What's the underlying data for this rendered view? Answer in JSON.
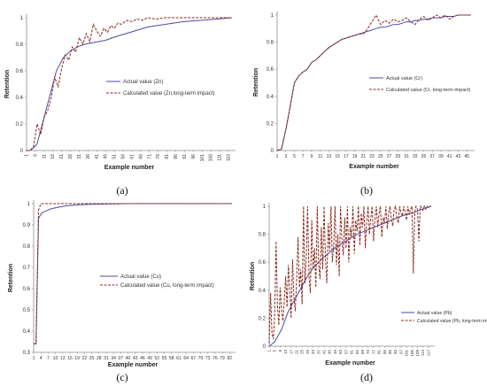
{
  "colors": {
    "actual": "#4b4ba6",
    "calculated": "#8b2a1e",
    "axis": "#8c8c8c"
  },
  "chart_data": [
    {
      "type": "line",
      "panel": "(a)",
      "xlabel": "Example number",
      "ylabel": "Retention",
      "ylim": [
        0,
        1
      ],
      "yticks": [
        "0",
        "0.2",
        "0.4",
        "0.6",
        "0.8",
        "1"
      ],
      "xticks": [
        "1",
        "6",
        "11",
        "16",
        "21",
        "26",
        "31",
        "36",
        "41",
        "46",
        "51",
        "56",
        "61",
        "66",
        "71",
        "76",
        "81",
        "86",
        "91",
        "96",
        "101",
        "106",
        "111",
        "116"
      ],
      "legend": "center-right",
      "grid": false,
      "series": [
        {
          "name": "Actual value (Zn)",
          "x": [
            1,
            3,
            5,
            7,
            10,
            14,
            18,
            22,
            26,
            30,
            34,
            38,
            42,
            46,
            50,
            55,
            60,
            70,
            80,
            90,
            100,
            110,
            118
          ],
          "values": [
            0,
            0,
            0.02,
            0.05,
            0.2,
            0.4,
            0.6,
            0.7,
            0.75,
            0.78,
            0.8,
            0.81,
            0.82,
            0.83,
            0.85,
            0.87,
            0.89,
            0.93,
            0.95,
            0.97,
            0.98,
            0.99,
            1
          ]
        },
        {
          "name": "Calculated value (Zn,long-term impact)",
          "x": [
            1,
            3,
            5,
            7,
            9,
            11,
            13,
            15,
            17,
            19,
            21,
            23,
            25,
            27,
            29,
            31,
            33,
            35,
            37,
            39,
            41,
            43,
            45,
            47,
            49,
            51,
            53,
            55,
            58,
            61,
            64,
            67,
            70,
            75,
            80,
            90,
            100,
            110,
            118
          ],
          "values": [
            0,
            0,
            0.03,
            0.2,
            0.12,
            0.25,
            0.3,
            0.4,
            0.55,
            0.48,
            0.62,
            0.72,
            0.68,
            0.78,
            0.74,
            0.85,
            0.8,
            0.88,
            0.82,
            0.95,
            0.9,
            0.86,
            0.92,
            0.89,
            0.94,
            0.92,
            0.96,
            0.95,
            0.98,
            0.97,
            0.99,
            0.98,
            1,
            0.99,
            1,
            1,
            1,
            1,
            1
          ]
        }
      ]
    },
    {
      "type": "line",
      "panel": "(b)",
      "xlabel": "Example number",
      "ylabel": "Retention",
      "ylim": [
        0,
        1
      ],
      "yticks": [
        "0",
        "0.2",
        "0.4",
        "0.6",
        "0.8",
        "1"
      ],
      "xticks": [
        "1",
        "3",
        "5",
        "7",
        "9",
        "11",
        "13",
        "15",
        "17",
        "19",
        "21",
        "23",
        "25",
        "27",
        "29",
        "31",
        "33",
        "35",
        "37",
        "39",
        "41",
        "43",
        "45"
      ],
      "legend": "center-right",
      "grid": false,
      "series": [
        {
          "name": "Actual value (Cr)",
          "x": [
            1,
            2,
            3,
            4,
            5,
            6,
            7,
            8,
            9,
            10,
            11,
            12,
            13,
            14,
            15,
            16,
            17,
            18,
            19,
            20,
            21,
            22,
            23,
            24,
            25,
            26,
            27,
            28,
            29,
            30,
            31,
            32,
            33,
            34,
            35,
            36,
            37,
            38,
            39,
            40,
            41,
            42,
            43,
            44,
            45,
            46
          ],
          "values": [
            0,
            0.01,
            0.15,
            0.32,
            0.5,
            0.55,
            0.58,
            0.6,
            0.65,
            0.67,
            0.7,
            0.73,
            0.76,
            0.78,
            0.8,
            0.82,
            0.83,
            0.84,
            0.85,
            0.86,
            0.87,
            0.88,
            0.89,
            0.9,
            0.91,
            0.91,
            0.92,
            0.93,
            0.93,
            0.94,
            0.95,
            0.95,
            0.96,
            0.96,
            0.97,
            0.97,
            0.98,
            0.98,
            0.98,
            0.99,
            0.99,
            0.99,
            1,
            1,
            1,
            1
          ]
        },
        {
          "name": "Calculated value (Cr, long-term impact)",
          "x": [
            1,
            2,
            3,
            4,
            5,
            6,
            7,
            8,
            9,
            10,
            11,
            12,
            13,
            14,
            15,
            16,
            17,
            18,
            19,
            20,
            21,
            22,
            23,
            24,
            25,
            26,
            27,
            28,
            29,
            30,
            31,
            32,
            33,
            34,
            35,
            36,
            37,
            38,
            39,
            40,
            41,
            42,
            43,
            44,
            45,
            46
          ],
          "values": [
            0,
            0.01,
            0.15,
            0.32,
            0.5,
            0.55,
            0.58,
            0.6,
            0.65,
            0.67,
            0.7,
            0.73,
            0.76,
            0.78,
            0.8,
            0.82,
            0.83,
            0.84,
            0.85,
            0.86,
            0.86,
            0.9,
            0.95,
            1,
            0.93,
            0.96,
            0.94,
            0.97,
            0.95,
            0.96,
            0.98,
            0.95,
            0.93,
            0.97,
            0.99,
            0.96,
            0.98,
            1,
            0.98,
            1,
            0.97,
            0.99,
            1,
            1,
            1,
            1
          ]
        }
      ]
    },
    {
      "type": "line",
      "panel": "(c)",
      "xlabel": "Example number",
      "ylabel": "Retention",
      "ylim": [
        0.3,
        1
      ],
      "yticks": [
        "0.3",
        "0.4",
        "0.5",
        "0.6",
        "0.7",
        "0.8",
        "0.9",
        "1"
      ],
      "xticks": [
        "1",
        "4",
        "7",
        "10",
        "13",
        "16",
        "19",
        "22",
        "25",
        "28",
        "31",
        "34",
        "37",
        "40",
        "43",
        "46",
        "49",
        "52",
        "55",
        "58",
        "61",
        "64",
        "67",
        "70",
        "73",
        "76",
        "79",
        "82"
      ],
      "legend": "center-right",
      "grid": false,
      "series": [
        {
          "name": "Actual value (Cu)",
          "x": [
            1,
            2,
            3,
            4,
            5,
            6,
            7,
            8,
            10,
            12,
            15,
            20,
            25,
            30,
            40,
            50,
            60,
            70,
            83
          ],
          "values": [
            0.34,
            0.34,
            0.93,
            0.95,
            0.96,
            0.965,
            0.97,
            0.975,
            0.98,
            0.985,
            0.99,
            0.995,
            0.997,
            0.998,
            1,
            1,
            1,
            1,
            1
          ]
        },
        {
          "name": "Calculated value (Cu, long-term impact)",
          "x": [
            1,
            2,
            3,
            4,
            5,
            6,
            8,
            10,
            20,
            40,
            60,
            83
          ],
          "values": [
            0.34,
            0.34,
            0.97,
            1,
            1,
            1,
            1,
            1,
            1,
            1,
            1,
            1
          ]
        }
      ]
    },
    {
      "type": "line",
      "panel": "(d)",
      "xlabel": "Example number",
      "ylabel": "Retention",
      "ylim": [
        0,
        1
      ],
      "yticks": [
        "0",
        "0.2",
        "0.4",
        "0.6",
        "0.8",
        "1"
      ],
      "xticks": [
        "1",
        "5",
        "9",
        "13",
        "17",
        "21",
        "25",
        "29",
        "33",
        "37",
        "41",
        "45",
        "49",
        "53",
        "57",
        "61",
        "65",
        "69",
        "73",
        "77",
        "81",
        "85",
        "89",
        "93",
        "97",
        "101",
        "105",
        "109",
        "113",
        "117"
      ],
      "legend": "bottom-left",
      "grid": false,
      "series": [
        {
          "name": "Actual value (Pb)",
          "x": [
            1,
            5,
            10,
            15,
            20,
            25,
            30,
            35,
            40,
            45,
            50,
            55,
            60,
            65,
            70,
            75,
            80,
            85,
            90,
            95,
            100,
            105,
            110,
            115,
            119
          ],
          "values": [
            0,
            0.03,
            0.12,
            0.25,
            0.34,
            0.43,
            0.52,
            0.58,
            0.63,
            0.67,
            0.71,
            0.74,
            0.77,
            0.8,
            0.82,
            0.84,
            0.86,
            0.88,
            0.9,
            0.92,
            0.94,
            0.95,
            0.97,
            0.99,
            1
          ]
        },
        {
          "name": "Calculated value (Pb, long-term impact)",
          "x": [
            1,
            2,
            3,
            4,
            5,
            6,
            7,
            8,
            9,
            10,
            11,
            12,
            13,
            14,
            15,
            16,
            17,
            18,
            19,
            20,
            21,
            22,
            23,
            24,
            25,
            26,
            27,
            28,
            29,
            30,
            31,
            32,
            33,
            34,
            35,
            36,
            37,
            38,
            39,
            40,
            41,
            42,
            43,
            44,
            45,
            46,
            47,
            48,
            49,
            50,
            51,
            52,
            53,
            54,
            55,
            56,
            57,
            58,
            59,
            60,
            61,
            62,
            63,
            64,
            65,
            66,
            67,
            68,
            69,
            70,
            71,
            72,
            73,
            74,
            75,
            76,
            77,
            78,
            79,
            80,
            81,
            82,
            83,
            84,
            85,
            86,
            87,
            88,
            89,
            90,
            91,
            92,
            93,
            94,
            95,
            96,
            97,
            98,
            99,
            100,
            101,
            102,
            103,
            104,
            105,
            106,
            107,
            108,
            109,
            110,
            111,
            112,
            113,
            114,
            115,
            116,
            117,
            118,
            119
          ],
          "values": [
            0.02,
            0.38,
            0.1,
            0.05,
            0.22,
            0.75,
            0.3,
            0.15,
            0.42,
            0.25,
            0.18,
            0.33,
            0.5,
            0.28,
            0.58,
            0.4,
            0.2,
            0.62,
            0.35,
            0.25,
            0.48,
            0.78,
            0.42,
            0.55,
            0.3,
            1,
            0.45,
            0.62,
            1,
            0.5,
            0.38,
            0.9,
            0.55,
            0.7,
            0.42,
            1,
            0.6,
            0.48,
            0.85,
            0.55,
            1,
            0.62,
            0.45,
            0.88,
            0.68,
            1,
            0.6,
            0.72,
            1,
            0.58,
            0.8,
            0.5,
            1,
            0.75,
            0.65,
            0.92,
            0.7,
            1,
            0.6,
            0.85,
            0.78,
            1,
            0.66,
            0.9,
            0.82,
            1,
            0.72,
            0.95,
            0.85,
            1,
            0.7,
            0.88,
            1,
            0.8,
            0.92,
            1,
            0.75,
            0.9,
            1,
            0.85,
            0.95,
            1,
            0.78,
            0.92,
            0.88,
            1,
            0.84,
            0.95,
            1,
            0.9,
            0.86,
            0.98,
            1,
            0.92,
            0.88,
            1,
            0.95,
            0.93,
            1,
            0.96,
            0.9,
            1,
            0.94,
            0.98,
            1,
            0.52,
            0.96,
            1,
            0.98,
            0.75,
            1,
            0.99,
            0.97,
            1,
            0.98,
            1,
            0.99,
            1,
            1
          ]
        }
      ]
    }
  ]
}
